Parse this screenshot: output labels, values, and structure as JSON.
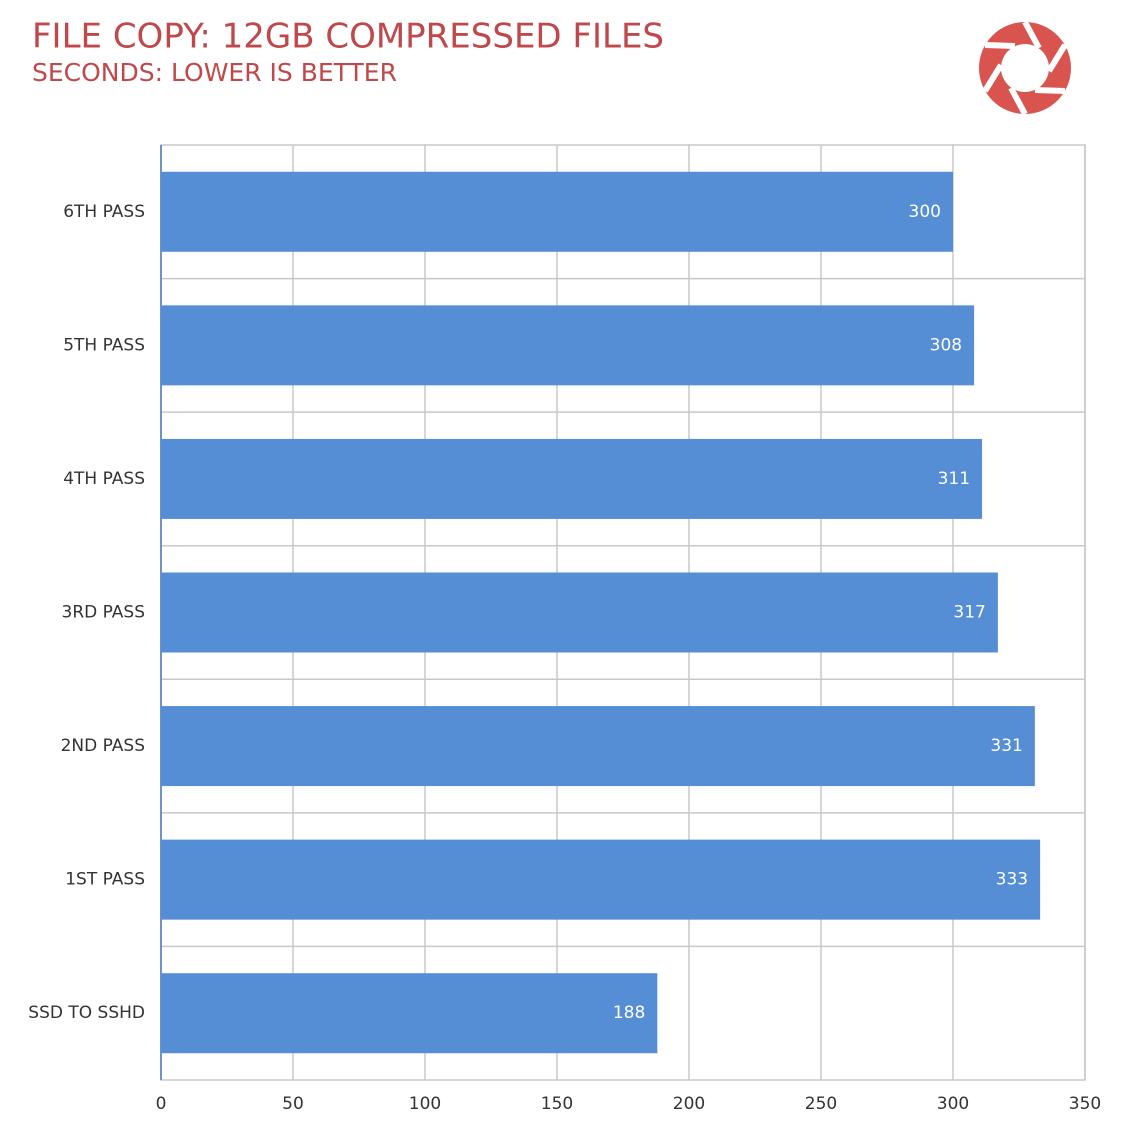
{
  "chart_data": {
    "type": "bar",
    "orientation": "horizontal",
    "title": "FILE COPY: 12GB COMPRESSED FILES",
    "subtitle": "SECONDS: LOWER IS BETTER",
    "categories": [
      "6TH PASS",
      "5TH PASS",
      "4TH PASS",
      "3RD PASS",
      "2ND PASS",
      "1ST PASS",
      "SSD TO SSHD"
    ],
    "values": [
      300,
      308,
      311,
      317,
      331,
      333,
      188
    ],
    "color": "#558ed5",
    "xlim": [
      0,
      350
    ],
    "xticks": [
      0,
      50,
      100,
      150,
      200,
      250,
      300,
      350
    ],
    "grid": true
  }
}
